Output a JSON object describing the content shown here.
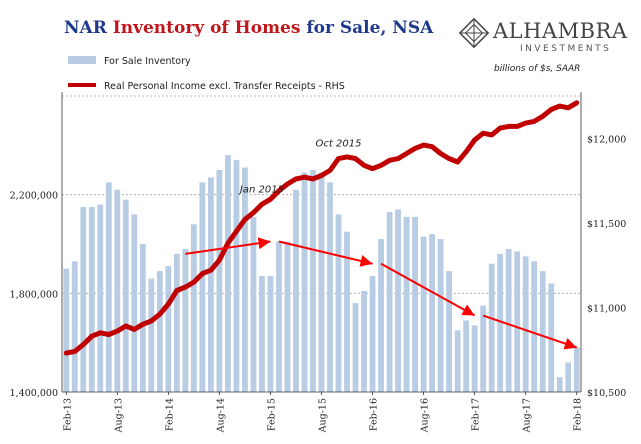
{
  "title": {
    "part1": "NAR ",
    "part2": "Inventory of Homes",
    "part3": " for Sale, NSA"
  },
  "logo": {
    "name": "ALHAMBRA",
    "sub": "INVESTMENTS"
  },
  "colors": {
    "bars": "#b8cce4",
    "line": "#c00000",
    "arrows": "#ff0000",
    "grid": "#a6a6a6",
    "title_blue": "#1f3a8a",
    "title_red": "#c0161a"
  },
  "chart_data": {
    "type": "bar+line",
    "units_note": "billions of $s, SAAR",
    "legend": [
      "For Sale Inventory",
      "Real Personal Income excl. Transfer Receipts - RHS"
    ],
    "x": [
      "Feb-13",
      "Mar-13",
      "Apr-13",
      "May-13",
      "Jun-13",
      "Jul-13",
      "Aug-13",
      "Sep-13",
      "Oct-13",
      "Nov-13",
      "Dec-13",
      "Jan-14",
      "Feb-14",
      "Mar-14",
      "Apr-14",
      "May-14",
      "Jun-14",
      "Jul-14",
      "Aug-14",
      "Sep-14",
      "Oct-14",
      "Nov-14",
      "Dec-14",
      "Jan-15",
      "Feb-15",
      "Mar-15",
      "Apr-15",
      "May-15",
      "Jun-15",
      "Jul-15",
      "Aug-15",
      "Sep-15",
      "Oct-15",
      "Nov-15",
      "Dec-15",
      "Jan-16",
      "Feb-16",
      "Mar-16",
      "Apr-16",
      "May-16",
      "Jun-16",
      "Jul-16",
      "Aug-16",
      "Sep-16",
      "Oct-16",
      "Nov-16",
      "Dec-16",
      "Jan-17",
      "Feb-17",
      "Mar-17",
      "Apr-17",
      "May-17",
      "Jun-17",
      "Jul-17",
      "Aug-17",
      "Sep-17",
      "Oct-17",
      "Nov-17",
      "Dec-17",
      "Jan-18",
      "Feb-18"
    ],
    "x_tick_labels": [
      "Feb-13",
      "Aug-13",
      "Feb-14",
      "Aug-14",
      "Feb-15",
      "Aug-15",
      "Feb-16",
      "Aug-16",
      "Feb-17",
      "Aug-17",
      "Feb-18"
    ],
    "left_axis": {
      "min": 1400000,
      "max": 2600000,
      "ticks": [
        1400000,
        1800000,
        2200000
      ],
      "tick_labels": [
        "1,400,000",
        "1,800,000",
        "2,200,000"
      ]
    },
    "right_axis": {
      "min": 10500,
      "max": 12250,
      "ticks": [
        10500,
        11000,
        11500,
        12000
      ],
      "tick_labels": [
        "$10,500",
        "$11,000",
        "$11,500",
        "$12,000"
      ]
    },
    "inventory": [
      1900000,
      1930000,
      2150000,
      2150000,
      2160000,
      2250000,
      2220000,
      2180000,
      2120000,
      2000000,
      1860000,
      1890000,
      1910000,
      1960000,
      1980000,
      2080000,
      2250000,
      2270000,
      2300000,
      2360000,
      2340000,
      2310000,
      2110000,
      1870000,
      1870000,
      2010000,
      2010000,
      2220000,
      2290000,
      2300000,
      2290000,
      2250000,
      2120000,
      2050000,
      1760000,
      1810000,
      1870000,
      2020000,
      2130000,
      2140000,
      2110000,
      2110000,
      2030000,
      2040000,
      2020000,
      1890000,
      1650000,
      1690000,
      1670000,
      1750000,
      1920000,
      1960000,
      1980000,
      1970000,
      1950000,
      1930000,
      1890000,
      1840000,
      1460000,
      1520000,
      1580000
    ],
    "income": [
      10730,
      10740,
      10780,
      10830,
      10850,
      10840,
      10860,
      10890,
      10870,
      10900,
      10920,
      10960,
      11020,
      11100,
      11120,
      11150,
      11200,
      11220,
      11280,
      11380,
      11450,
      11520,
      11560,
      11610,
      11640,
      11690,
      11730,
      11760,
      11770,
      11760,
      11780,
      11810,
      11880,
      11890,
      11880,
      11840,
      11820,
      11840,
      11870,
      11880,
      11910,
      11940,
      11960,
      11950,
      11910,
      11880,
      11860,
      11920,
      11990,
      12030,
      12020,
      12060,
      12070,
      12070,
      12090,
      12100,
      12130,
      12170,
      12190,
      12180,
      12210
    ],
    "annotations": [
      {
        "text": "Jan 2015",
        "x": "Jan-15"
      },
      {
        "text": "Oct 2015",
        "x": "Oct-15"
      }
    ],
    "arrows": [
      {
        "from": [
          "Apr-14",
          1960000
        ],
        "to": [
          "Feb-15",
          2010000
        ]
      },
      {
        "from": [
          "Mar-15",
          2010000
        ],
        "to": [
          "Feb-16",
          1920000
        ]
      },
      {
        "from": [
          "Mar-16",
          1920000
        ],
        "to": [
          "Feb-17",
          1710000
        ]
      },
      {
        "from": [
          "Mar-17",
          1710000
        ],
        "to": [
          "Feb-18",
          1580000
        ]
      }
    ],
    "grid": {
      "horizontal": true,
      "style": "dashed"
    },
    "legend_position": "top-left"
  }
}
